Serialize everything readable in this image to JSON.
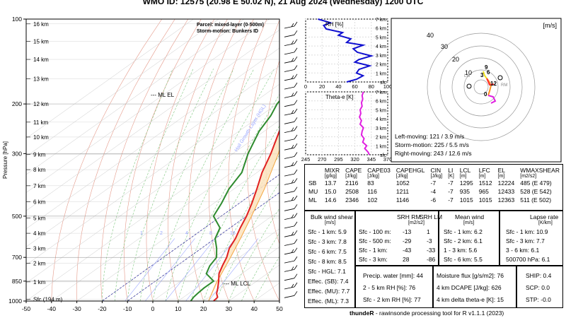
{
  "header": {
    "title": "WMO ID: 12575 (20.98 E 50.02 N), 21 Aug 2024 (Wednesday) 1200 UTC"
  },
  "chart_data": [
    {
      "type": "skewt",
      "ylabel": "Pressure [hPa]",
      "pressure_ticks": [
        100,
        200,
        300,
        500,
        700,
        850,
        1000
      ],
      "temp_ticks": [
        -50,
        -40,
        -30,
        -20,
        -10,
        0,
        10,
        20,
        30,
        40,
        50
      ],
      "height_labels": [
        "16 km",
        "15 km",
        "14 km",
        "13 km",
        "12 km",
        "11 km",
        "10 km",
        "9 km",
        "8 km",
        "7 km",
        "6 km",
        "5 km",
        "4 km",
        "3 km",
        "2 km",
        "1 km",
        "Sfc (194 m)"
      ],
      "height_pressures": [
        104,
        120,
        139,
        163,
        200,
        232,
        262,
        302,
        342,
        390,
        445,
        507,
        575,
        650,
        735,
        855,
        985
      ],
      "parcel_label": "Parcel: mixed-layer (0-500m)",
      "storm_motion_label": "Storm-motion: Bunkers ID",
      "el_label": "ML EL",
      "lcl_label": "ML LCL",
      "annotation": "Hail Growth Layer (HGL)",
      "mixing_ratio_labels": [
        "1",
        "2",
        "4",
        "8",
        "16"
      ],
      "temperature_profile": [
        [
          1000,
          24
        ],
        [
          970,
          23.5
        ],
        [
          940,
          21
        ],
        [
          900,
          18.5
        ],
        [
          850,
          15
        ],
        [
          800,
          11
        ],
        [
          750,
          8
        ],
        [
          700,
          5
        ],
        [
          650,
          1
        ],
        [
          600,
          -2
        ],
        [
          550,
          -6
        ],
        [
          500,
          -10
        ],
        [
          450,
          -15
        ],
        [
          400,
          -21
        ],
        [
          350,
          -28
        ],
        [
          300,
          -35
        ],
        [
          250,
          -44
        ],
        [
          220,
          -50
        ],
        [
          200,
          -53
        ],
        [
          180,
          -50
        ],
        [
          160,
          -50
        ],
        [
          140,
          -49
        ],
        [
          120,
          -50
        ],
        [
          100,
          -52
        ]
      ],
      "dewpoint_profile": [
        [
          1000,
          15
        ],
        [
          970,
          14
        ],
        [
          940,
          13.5
        ],
        [
          900,
          13
        ],
        [
          850,
          13
        ],
        [
          800,
          6
        ],
        [
          750,
          3
        ],
        [
          700,
          1
        ],
        [
          650,
          -4
        ],
        [
          600,
          -10
        ],
        [
          550,
          -14
        ],
        [
          500,
          -23
        ],
        [
          450,
          -27
        ],
        [
          400,
          -32
        ],
        [
          350,
          -36
        ],
        [
          300,
          -44
        ],
        [
          250,
          -52
        ],
        [
          220,
          -56
        ],
        [
          200,
          -60
        ],
        [
          180,
          -63
        ],
        [
          160,
          -70
        ],
        [
          140,
          -74
        ],
        [
          120,
          -77
        ],
        [
          100,
          -83
        ]
      ],
      "parcel_profile": [
        [
          1000,
          22
        ],
        [
          900,
          17
        ],
        [
          855,
          14.6
        ],
        [
          800,
          12
        ],
        [
          700,
          6.5
        ],
        [
          600,
          0
        ],
        [
          500,
          -8
        ],
        [
          400,
          -18
        ],
        [
          300,
          -32
        ],
        [
          250,
          -42
        ],
        [
          210,
          -51
        ],
        [
          200,
          -53
        ]
      ]
    },
    {
      "type": "line",
      "title": "RH [%]",
      "x_ticks": [
        0,
        20,
        40,
        60,
        80,
        100
      ],
      "y_labels": [
        "7 km",
        "6 km",
        "5 km",
        "4 km",
        "3 km",
        "2 km",
        "1 km",
        "sfc"
      ],
      "values": [
        [
          50,
          0
        ],
        [
          62,
          0.3
        ],
        [
          70,
          0.7
        ],
        [
          62,
          1.0
        ],
        [
          65,
          1.4
        ],
        [
          78,
          1.8
        ],
        [
          60,
          2.2
        ],
        [
          65,
          2.5
        ],
        [
          80,
          2.9
        ],
        [
          63,
          3.3
        ],
        [
          58,
          3.7
        ],
        [
          70,
          4.1
        ],
        [
          50,
          4.4
        ],
        [
          55,
          4.8
        ],
        [
          40,
          5.2
        ],
        [
          45,
          5.5
        ],
        [
          25,
          5.9
        ],
        [
          22,
          6.3
        ],
        [
          30,
          6.6
        ],
        [
          15,
          7
        ]
      ]
    },
    {
      "type": "line",
      "title": "Theta-e [K]",
      "x_ticks": [
        245,
        270,
        295,
        320,
        345,
        370
      ],
      "y_labels": [
        "7 km",
        "6 km",
        "5 km",
        "4 km",
        "3 km",
        "2 km",
        "1 km",
        "sfc"
      ],
      "values": [
        [
          342,
          0
        ],
        [
          340,
          0.3
        ],
        [
          335,
          0.7
        ],
        [
          338,
          1.0
        ],
        [
          332,
          1.4
        ],
        [
          334,
          1.8
        ],
        [
          330,
          2.2
        ],
        [
          331,
          2.6
        ],
        [
          333,
          3.0
        ],
        [
          328,
          3.4
        ],
        [
          330,
          3.8
        ],
        [
          327,
          4.2
        ],
        [
          329,
          4.6
        ],
        [
          328,
          5.0
        ],
        [
          331,
          5.4
        ],
        [
          330,
          5.8
        ],
        [
          332,
          6.2
        ],
        [
          331,
          6.6
        ],
        [
          333,
          7
        ]
      ]
    },
    {
      "type": "hodograph",
      "unit": "[m/s]",
      "ring_labels": [
        "10",
        "20",
        "30",
        "40"
      ],
      "height_labels": [
        "0",
        "3",
        "6",
        "9",
        "12"
      ],
      "lm_label": "LM",
      "rm_label": "RM",
      "left_moving": "Left-moving: 121 / 3.9 m/s",
      "storm_motion": "Storm-motion: 225 / 5.5 m/s",
      "right_moving": "Right-moving: 243 / 12.6 m/s"
    }
  ],
  "params": {
    "headers": [
      "MIXR",
      "CAPE",
      "CAPE03",
      "CAPEHGL",
      "CIN",
      "LI",
      "LCL",
      "LFC",
      "EL",
      "WMAXSHEAR"
    ],
    "units": [
      "[g/kg]",
      "[J/kg]",
      "[J/kg]",
      "[J/kg]",
      "[J/kg]",
      "[K]",
      "[m]",
      "[m]",
      "[m]",
      "[m2/s2]"
    ],
    "rows": [
      {
        "label": "SB",
        "values": [
          "13.7",
          "2116",
          "83",
          "1052",
          "-7",
          "-7",
          "1295",
          "1512",
          "12224",
          "485  (E 479)"
        ]
      },
      {
        "label": "MU",
        "values": [
          "15.0",
          "2508",
          "116",
          "1211",
          "-4",
          "-7",
          "935",
          "965",
          "12433",
          "528  (E 542)"
        ]
      },
      {
        "label": "ML",
        "values": [
          "14.6",
          "2346",
          "102",
          "1146",
          "-6",
          "-7",
          "1015",
          "1015",
          "12363",
          "511  (E 502)"
        ]
      }
    ]
  },
  "shear": {
    "title": "Bulk wind shear",
    "unit": "[m/s]",
    "rows": [
      "Sfc - 1 km: 5.9",
      "Sfc - 3 km: 7.8",
      "Sfc - 6 km: 7.5",
      "Sfc - 8 km: 8.5",
      "Sfc - HGL: 7.1",
      "Effec. (SB): 7.4",
      "Effec. (MU): 7.7",
      "Effec. (ML): 7.3"
    ]
  },
  "srh": {
    "h1": "SRH RM",
    "h2": "SRH LM",
    "unit": "[m2/s2]",
    "rows": [
      {
        "label": "Sfc - 100 m:",
        "rm": "-13",
        "lm": "1"
      },
      {
        "label": "Sfc - 500 m:",
        "rm": "-29",
        "lm": "-3"
      },
      {
        "label": "Sfc - 1 km:",
        "rm": "-43",
        "lm": "-33"
      },
      {
        "label": "Sfc - 3 km:",
        "rm": "28",
        "lm": "-86"
      }
    ]
  },
  "meanwind": {
    "title": "Mean wind",
    "unit": "[m/s]",
    "rows": [
      "Sfc - 1 km: 6.2",
      "Sfc - 2 km: 6.1",
      "1 - 3 km: 5.6",
      "Sfc - 6 km: 5.5"
    ]
  },
  "lapse": {
    "title": "Lapse rate",
    "unit": "[K/km]",
    "rows": [
      "Sfc - 1 km: 10.9",
      "Sfc - 3 km: 7.7",
      "3 - 6 km: 6.1",
      "500700 hPa: 6.1"
    ]
  },
  "moisture": {
    "rows": [
      "Precip. water [mm]: 44",
      "2 - 5 km RH [%]: 76",
      "Sfc - 2 km RH [%]: 77"
    ]
  },
  "flux": {
    "rows": [
      "Moisture flux [g/s/m2]: 76",
      "4 km DCAPE [J/kg]: 626",
      "4 km delta theta-e [K]: 15"
    ]
  },
  "indices": {
    "rows": [
      "SHIP: 0.4",
      "SCP: 0.0",
      "STP: -0.0"
    ]
  },
  "footer": {
    "tool": "thundeR",
    "rest": " - rawinsonde processing tool for R v1.1.1 (2023)"
  }
}
